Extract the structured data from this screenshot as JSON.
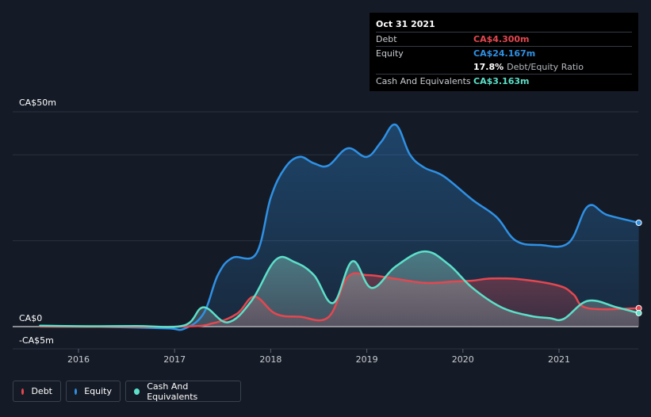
{
  "tooltip": {
    "date": "Oct 31 2021",
    "rows": [
      {
        "label": "Debt",
        "value": "CA$4.300m",
        "color": "#e5474f"
      },
      {
        "label": "Equity",
        "value": "CA$24.167m",
        "color": "#2f91e5"
      },
      {
        "ratio_value": "17.8%",
        "ratio_label": "Debt/Equity Ratio"
      },
      {
        "label": "Cash And Equivalents",
        "value": "CA$3.163m",
        "color": "#5ce0c9"
      }
    ]
  },
  "legend": [
    {
      "label": "Debt",
      "color": "#e5474f"
    },
    {
      "label": "Equity",
      "color": "#2f91e5"
    },
    {
      "label": "Cash And Equivalents",
      "color": "#5ce0c9"
    }
  ],
  "chart_data": {
    "type": "area",
    "ylim": [
      -5,
      50
    ],
    "y_tick_labels": [
      {
        "value": 50,
        "label": "CA$50m"
      },
      {
        "value": 0,
        "label": "CA$0"
      },
      {
        "value": -5,
        "label": "-CA$5m"
      }
    ],
    "x_ticks": [
      {
        "value": 2016,
        "label": "2016"
      },
      {
        "value": 2017,
        "label": "2017"
      },
      {
        "value": 2018,
        "label": "2018"
      },
      {
        "value": 2019,
        "label": "2019"
      },
      {
        "value": 2020,
        "label": "2020"
      },
      {
        "value": 2021,
        "label": "2021"
      }
    ],
    "xlim": [
      2015.35,
      2021.85
    ],
    "series": [
      {
        "name": "Equity",
        "color": "#2f91e5",
        "points": [
          [
            2015.6,
            0.2
          ],
          [
            2016.1,
            0.0
          ],
          [
            2016.6,
            -0.2
          ],
          [
            2016.95,
            -0.4
          ],
          [
            2017.1,
            -0.5
          ],
          [
            2017.3,
            3
          ],
          [
            2017.45,
            12
          ],
          [
            2017.6,
            16
          ],
          [
            2017.85,
            17
          ],
          [
            2018.0,
            30
          ],
          [
            2018.15,
            37
          ],
          [
            2018.3,
            39.5
          ],
          [
            2018.45,
            38
          ],
          [
            2018.6,
            37.5
          ],
          [
            2018.8,
            41.5
          ],
          [
            2019.0,
            39.5
          ],
          [
            2019.15,
            43
          ],
          [
            2019.3,
            47
          ],
          [
            2019.45,
            40
          ],
          [
            2019.6,
            37
          ],
          [
            2019.8,
            35
          ],
          [
            2020.1,
            29.5
          ],
          [
            2020.35,
            25.5
          ],
          [
            2020.55,
            20
          ],
          [
            2020.8,
            19
          ],
          [
            2021.1,
            19.5
          ],
          [
            2021.3,
            28
          ],
          [
            2021.5,
            26
          ],
          [
            2021.83,
            24.17
          ]
        ]
      },
      {
        "name": "Debt",
        "color": "#e5474f",
        "points": [
          [
            2015.6,
            0
          ],
          [
            2017.05,
            0
          ],
          [
            2017.4,
            0.8
          ],
          [
            2017.65,
            3
          ],
          [
            2017.83,
            7
          ],
          [
            2018.05,
            3
          ],
          [
            2018.3,
            2.3
          ],
          [
            2018.6,
            2.2
          ],
          [
            2018.8,
            11.5
          ],
          [
            2019.0,
            12
          ],
          [
            2019.2,
            11.5
          ],
          [
            2019.6,
            10.2
          ],
          [
            2019.9,
            10.5
          ],
          [
            2020.1,
            10.7
          ],
          [
            2020.3,
            11.2
          ],
          [
            2020.6,
            11
          ],
          [
            2021.0,
            9.5
          ],
          [
            2021.15,
            7.5
          ],
          [
            2021.3,
            4.3
          ],
          [
            2021.83,
            4.3
          ]
        ]
      },
      {
        "name": "Cash And Equivalents",
        "color": "#5ce0c9",
        "points": [
          [
            2015.6,
            0.2
          ],
          [
            2016.1,
            0.1
          ],
          [
            2016.6,
            0.15
          ],
          [
            2017.1,
            0.3
          ],
          [
            2017.3,
            4.5
          ],
          [
            2017.55,
            1
          ],
          [
            2017.8,
            6
          ],
          [
            2018.05,
            15.5
          ],
          [
            2018.25,
            15
          ],
          [
            2018.45,
            12
          ],
          [
            2018.65,
            5.5
          ],
          [
            2018.85,
            15.2
          ],
          [
            2019.05,
            9
          ],
          [
            2019.3,
            14
          ],
          [
            2019.6,
            17.5
          ],
          [
            2019.85,
            14.5
          ],
          [
            2020.1,
            9
          ],
          [
            2020.4,
            4.5
          ],
          [
            2020.7,
            2.5
          ],
          [
            2020.9,
            2
          ],
          [
            2021.05,
            1.8
          ],
          [
            2021.3,
            6
          ],
          [
            2021.6,
            4.5
          ],
          [
            2021.83,
            3.16
          ]
        ]
      }
    ]
  }
}
